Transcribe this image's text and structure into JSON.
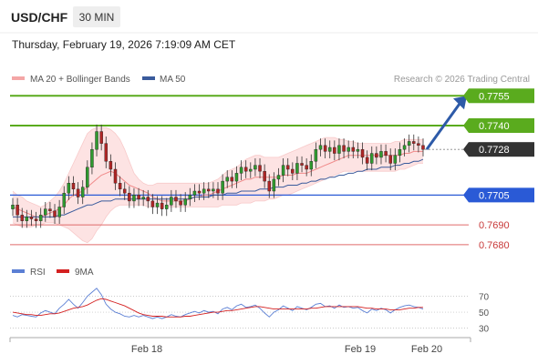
{
  "header": {
    "symbol": "USD/CHF",
    "timeframe": "30 MIN",
    "datetime": "Thursday, February 19, 2026 7:19:09 AM CET"
  },
  "legend": {
    "ma20_label": "MA 20 + Bollinger Bands",
    "ma50_label": "MA 50",
    "ma20_color": "#f4a6a6",
    "ma50_color": "#3a5b9c",
    "rsi_label": "RSI",
    "ma9_label": "9MA",
    "rsi_color": "#5b7fd4",
    "ma9_color": "#d42020"
  },
  "copyright": "Research © 2026 Trading Central",
  "colors": {
    "up_candle": "#2f9a2f",
    "down_candle": "#b02525",
    "resistance": "#5aab1e",
    "pivot": "#2a5ad6",
    "support": "#e06a6a",
    "arrow": "#2d5aa8",
    "last_price_tag": "#333333"
  },
  "chart_data": [
    {
      "type": "candlestick",
      "symbol": "USD/CHF",
      "timeframe": "30 MIN",
      "x_ticks": [
        "Feb 18",
        "Feb 19",
        "Feb 20"
      ],
      "ylim": [
        0.7674,
        0.7762
      ],
      "levels": [
        {
          "value": 0.7755,
          "label": "0.7755",
          "role": "resistance"
        },
        {
          "value": 0.774,
          "label": "0.7740",
          "role": "resistance"
        },
        {
          "value": 0.7728,
          "label": "0.7728",
          "role": "last"
        },
        {
          "value": 0.7705,
          "label": "0.7705",
          "role": "pivot"
        },
        {
          "value": 0.769,
          "label": "0.7690",
          "role": "support"
        },
        {
          "value": 0.768,
          "label": "0.7680",
          "role": "support"
        }
      ],
      "last_price": 0.7728,
      "forecast_target": 0.7755,
      "close": [
        0.77,
        0.7695,
        0.7692,
        0.7694,
        0.7693,
        0.7692,
        0.7695,
        0.7698,
        0.7697,
        0.7694,
        0.7699,
        0.7706,
        0.7711,
        0.7708,
        0.7704,
        0.7709,
        0.7719,
        0.7728,
        0.7737,
        0.7731,
        0.7722,
        0.7718,
        0.7711,
        0.7708,
        0.7706,
        0.7702,
        0.7705,
        0.7703,
        0.7704,
        0.7702,
        0.7699,
        0.7701,
        0.7698,
        0.77,
        0.7704,
        0.7702,
        0.77,
        0.7703,
        0.7705,
        0.7707,
        0.7706,
        0.7708,
        0.7707,
        0.7708,
        0.7706,
        0.7712,
        0.7714,
        0.7712,
        0.7716,
        0.7719,
        0.7717,
        0.7718,
        0.772,
        0.7717,
        0.7712,
        0.7707,
        0.7713,
        0.7715,
        0.772,
        0.7718,
        0.7716,
        0.7721,
        0.772,
        0.7718,
        0.7722,
        0.7728,
        0.773,
        0.7727,
        0.7729,
        0.7726,
        0.773,
        0.7727,
        0.7729,
        0.7727,
        0.7728,
        0.7724,
        0.7721,
        0.7726,
        0.7724,
        0.7727,
        0.7725,
        0.7721,
        0.7725,
        0.7728,
        0.773,
        0.7732,
        0.7731,
        0.773,
        0.7728
      ],
      "ma20": [
        0.7699,
        0.7698,
        0.7697,
        0.7696,
        0.7695,
        0.7694,
        0.7694,
        0.7695,
        0.7696,
        0.7697,
        0.7698,
        0.77,
        0.7703,
        0.7705,
        0.7706,
        0.7707,
        0.7709,
        0.7711,
        0.7713,
        0.7715,
        0.7716,
        0.7717,
        0.7716,
        0.7714,
        0.7712,
        0.771,
        0.7709,
        0.7708,
        0.7707,
        0.7706,
        0.7704,
        0.7703,
        0.7702,
        0.7702,
        0.7702,
        0.7702,
        0.7702,
        0.7702,
        0.7703,
        0.7704,
        0.7704,
        0.7705,
        0.7705,
        0.7706,
        0.7707,
        0.7708,
        0.7709,
        0.771,
        0.7711,
        0.7712,
        0.7713,
        0.7713,
        0.7714,
        0.7714,
        0.7714,
        0.7714,
        0.7714,
        0.7714,
        0.7715,
        0.7715,
        0.7715,
        0.7716,
        0.7716,
        0.7716,
        0.7717,
        0.7718,
        0.7719,
        0.772,
        0.7721,
        0.7722,
        0.7723,
        0.7724,
        0.7725,
        0.7725,
        0.7725,
        0.7725,
        0.7725,
        0.7725,
        0.7725,
        0.7725,
        0.7725,
        0.7725,
        0.7725,
        0.7725,
        0.7726,
        0.7726,
        0.7727,
        0.7727,
        0.7727
      ],
      "ma50": [
        0.7694,
        0.7694,
        0.7694,
        0.7694,
        0.7694,
        0.7694,
        0.7694,
        0.7694,
        0.7694,
        0.7694,
        0.7695,
        0.7695,
        0.7696,
        0.7697,
        0.7698,
        0.7699,
        0.77,
        0.77,
        0.7701,
        0.7702,
        0.7702,
        0.7702,
        0.7703,
        0.7703,
        0.7703,
        0.7703,
        0.7703,
        0.7703,
        0.7703,
        0.7703,
        0.7703,
        0.7703,
        0.7703,
        0.7703,
        0.7703,
        0.7703,
        0.7703,
        0.7703,
        0.7703,
        0.7704,
        0.7704,
        0.7704,
        0.7704,
        0.7705,
        0.7705,
        0.7705,
        0.7706,
        0.7706,
        0.7706,
        0.7707,
        0.7707,
        0.7707,
        0.7707,
        0.7708,
        0.7708,
        0.7708,
        0.7709,
        0.7709,
        0.7709,
        0.771,
        0.771,
        0.771,
        0.7711,
        0.7711,
        0.7712,
        0.7712,
        0.7713,
        0.7713,
        0.7714,
        0.7714,
        0.7715,
        0.7715,
        0.7716,
        0.7716,
        0.7717,
        0.7717,
        0.7718,
        0.7718,
        0.7718,
        0.7719,
        0.7719,
        0.7719,
        0.772,
        0.772,
        0.7721,
        0.7721,
        0.7722,
        0.7722,
        0.7723
      ],
      "bb_upper": [
        0.7707,
        0.7705,
        0.7704,
        0.7702,
        0.7701,
        0.77,
        0.7699,
        0.77,
        0.7702,
        0.7704,
        0.7707,
        0.7711,
        0.7716,
        0.7721,
        0.7726,
        0.7731,
        0.7736,
        0.7738,
        0.7739,
        0.7739,
        0.7739,
        0.7738,
        0.7736,
        0.7733,
        0.7728,
        0.7722,
        0.7716,
        0.7713,
        0.7711,
        0.771,
        0.771,
        0.7711,
        0.7711,
        0.7711,
        0.7711,
        0.7711,
        0.7711,
        0.7711,
        0.7711,
        0.7711,
        0.7711,
        0.7711,
        0.7711,
        0.7712,
        0.7713,
        0.7715,
        0.7717,
        0.7718,
        0.7719,
        0.7721,
        0.7723,
        0.7724,
        0.7725,
        0.7725,
        0.7724,
        0.7724,
        0.7724,
        0.7724,
        0.7725,
        0.7726,
        0.7727,
        0.7728,
        0.7729,
        0.773,
        0.7731,
        0.7732,
        0.7733,
        0.7734,
        0.7734,
        0.7734,
        0.7733,
        0.7733,
        0.7732,
        0.7732,
        0.7731,
        0.7731,
        0.7731,
        0.7731,
        0.7731,
        0.7731,
        0.7731,
        0.7731,
        0.7732,
        0.7732,
        0.7733,
        0.7733,
        0.7733,
        0.7733,
        0.7733
      ],
      "bb_lower": [
        0.7691,
        0.769,
        0.7689,
        0.7689,
        0.7689,
        0.769,
        0.769,
        0.7691,
        0.7691,
        0.7691,
        0.769,
        0.7689,
        0.7688,
        0.7686,
        0.7684,
        0.7682,
        0.7681,
        0.7683,
        0.7687,
        0.769,
        0.7694,
        0.7697,
        0.7699,
        0.77,
        0.77,
        0.77,
        0.77,
        0.77,
        0.77,
        0.7699,
        0.7699,
        0.7699,
        0.7699,
        0.7699,
        0.7699,
        0.7699,
        0.7699,
        0.7699,
        0.7699,
        0.7699,
        0.7699,
        0.7699,
        0.7699,
        0.7699,
        0.7699,
        0.77,
        0.77,
        0.77,
        0.77,
        0.7701,
        0.7701,
        0.7701,
        0.7702,
        0.7702,
        0.7702,
        0.7703,
        0.7703,
        0.7704,
        0.7705,
        0.7705,
        0.7706,
        0.7707,
        0.7708,
        0.7709,
        0.771,
        0.7711,
        0.7712,
        0.7713,
        0.7714,
        0.7715,
        0.7716,
        0.7717,
        0.7717,
        0.7717,
        0.7717,
        0.7717,
        0.7717,
        0.7717,
        0.7717,
        0.7717,
        0.7717,
        0.7717,
        0.7717,
        0.7718,
        0.7718,
        0.7719,
        0.772,
        0.7721,
        0.7721
      ]
    },
    {
      "type": "line",
      "name": "RSI panel",
      "series": [
        {
          "name": "RSI",
          "values": [
            46,
            44,
            47,
            46,
            45,
            44,
            49,
            52,
            50,
            48,
            55,
            60,
            66,
            60,
            55,
            62,
            70,
            75,
            80,
            72,
            60,
            54,
            50,
            48,
            45,
            44,
            46,
            44,
            46,
            44,
            42,
            44,
            42,
            44,
            47,
            45,
            44,
            47,
            49,
            51,
            49,
            52,
            50,
            51,
            48,
            54,
            56,
            53,
            58,
            60,
            56,
            57,
            59,
            55,
            49,
            44,
            50,
            53,
            58,
            55,
            52,
            57,
            55,
            53,
            56,
            60,
            61,
            57,
            58,
            55,
            59,
            56,
            57,
            55,
            56,
            52,
            49,
            54,
            52,
            55,
            53,
            49,
            53,
            56,
            58,
            59,
            57,
            56,
            54
          ]
        },
        {
          "name": "9MA",
          "values": [
            50,
            49,
            48,
            47,
            47,
            46,
            46,
            47,
            48,
            48,
            49,
            51,
            53,
            55,
            56,
            57,
            59,
            62,
            65,
            67,
            66,
            64,
            62,
            60,
            58,
            55,
            52,
            49,
            47,
            46,
            45,
            45,
            45,
            44,
            44,
            44,
            44,
            45,
            45,
            46,
            47,
            48,
            49,
            50,
            50,
            51,
            52,
            52,
            53,
            54,
            55,
            56,
            57,
            57,
            56,
            55,
            54,
            54,
            54,
            54,
            54,
            54,
            54,
            54,
            55,
            55,
            56,
            57,
            57,
            57,
            57,
            57,
            57,
            57,
            57,
            56,
            55,
            55,
            54,
            54,
            54,
            53,
            53,
            53,
            54,
            55,
            55,
            56,
            56
          ]
        }
      ],
      "y_ticks": [
        70,
        50,
        30
      ],
      "ylim": [
        25,
        82
      ]
    }
  ]
}
